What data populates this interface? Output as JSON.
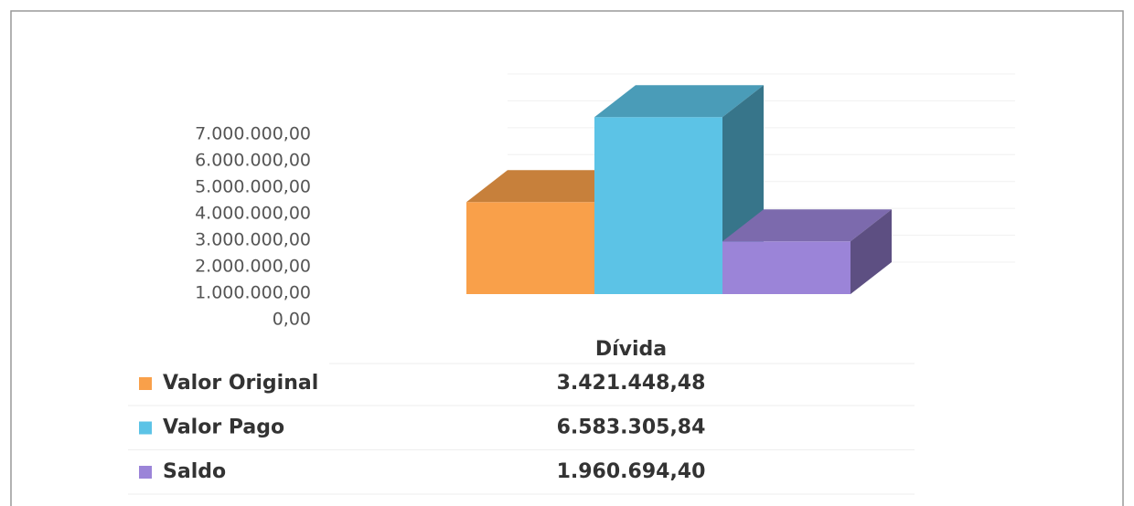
{
  "chart_data": {
    "type": "bar",
    "categories": [
      "Dívida"
    ],
    "series": [
      {
        "name": "Valor Original",
        "color": "#f9a04a",
        "values": [
          3421448.48
        ],
        "value_labels": [
          "3.421.448,48"
        ]
      },
      {
        "name": "Valor Pago",
        "color": "#5cc3e6",
        "values": [
          6583305.84
        ],
        "value_labels": [
          "6.583.305,84"
        ]
      },
      {
        "name": "Saldo",
        "color": "#9b84d8",
        "values": [
          1960694.4
        ],
        "value_labels": [
          "1.960.694,40"
        ]
      }
    ],
    "ylim": [
      0,
      7000000
    ],
    "yticks": [
      {
        "value": 0,
        "label": "0,00"
      },
      {
        "value": 1000000,
        "label": "1.000.000,00"
      },
      {
        "value": 2000000,
        "label": "2.000.000,00"
      },
      {
        "value": 3000000,
        "label": "3.000.000,00"
      },
      {
        "value": 4000000,
        "label": "4.000.000,00"
      },
      {
        "value": 5000000,
        "label": "5.000.000,00"
      },
      {
        "value": 6000000,
        "label": "6.000.000,00"
      },
      {
        "value": 7000000,
        "label": "7.000.000,00"
      }
    ],
    "grid": true
  }
}
